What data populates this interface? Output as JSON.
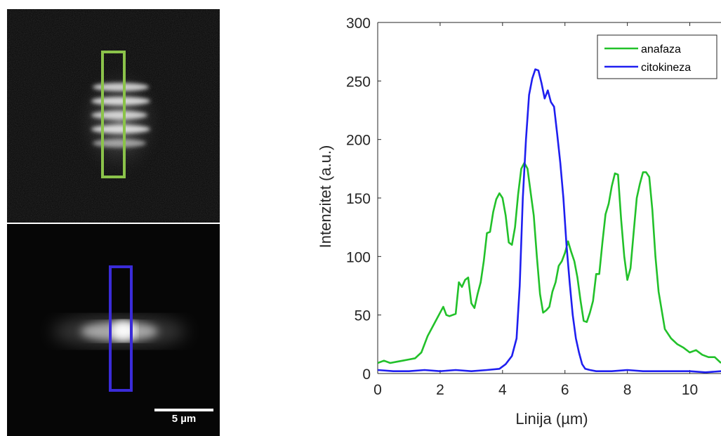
{
  "figure": {
    "scale_bar_label": "5 µm",
    "roi_top_color": "#8bc34a",
    "roi_bottom_color": "#3a2bd8"
  },
  "chart_data": {
    "type": "line",
    "xlabel": "Linija (µm)",
    "ylabel": "Intenzitet (a.u.)",
    "xlim": [
      0,
      11
    ],
    "ylim": [
      0,
      300
    ],
    "xticks": [
      0,
      2,
      4,
      6,
      8,
      10
    ],
    "yticks": [
      0,
      50,
      100,
      150,
      200,
      250,
      300
    ],
    "legend_position": "top-right",
    "series": [
      {
        "name": "anafaza",
        "color": "#22c12a",
        "x": [
          0,
          0.2,
          0.4,
          0.6,
          0.8,
          1.0,
          1.2,
          1.4,
          1.6,
          1.8,
          2.0,
          2.1,
          2.2,
          2.3,
          2.5,
          2.6,
          2.7,
          2.8,
          2.9,
          3.0,
          3.1,
          3.2,
          3.3,
          3.4,
          3.5,
          3.6,
          3.7,
          3.8,
          3.9,
          4.0,
          4.1,
          4.2,
          4.3,
          4.4,
          4.5,
          4.6,
          4.7,
          4.8,
          4.9,
          5.0,
          5.1,
          5.2,
          5.3,
          5.4,
          5.5,
          5.6,
          5.7,
          5.8,
          5.9,
          6.0,
          6.1,
          6.2,
          6.3,
          6.4,
          6.5,
          6.6,
          6.7,
          6.8,
          6.9,
          7.0,
          7.1,
          7.2,
          7.3,
          7.4,
          7.5,
          7.6,
          7.7,
          7.8,
          7.9,
          8.0,
          8.1,
          8.2,
          8.3,
          8.4,
          8.5,
          8.6,
          8.7,
          8.8,
          8.9,
          9.0,
          9.2,
          9.4,
          9.6,
          9.8,
          10.0,
          10.2,
          10.4,
          10.6,
          10.8,
          11.0
        ],
        "y": [
          9,
          11,
          9,
          10,
          11,
          12,
          13,
          18,
          32,
          42,
          52,
          57,
          50,
          49,
          51,
          78,
          74,
          80,
          82,
          60,
          56,
          68,
          78,
          96,
          120,
          121,
          138,
          149,
          154,
          150,
          135,
          112,
          110,
          125,
          153,
          175,
          180,
          175,
          155,
          135,
          100,
          68,
          52,
          54,
          57,
          70,
          78,
          92,
          96,
          103,
          113,
          104,
          96,
          82,
          62,
          45,
          44,
          52,
          62,
          85,
          85,
          112,
          136,
          145,
          160,
          171,
          170,
          132,
          100,
          80,
          90,
          120,
          150,
          162,
          172,
          172,
          168,
          140,
          100,
          70,
          38,
          30,
          25,
          22,
          18,
          20,
          16,
          14,
          14,
          9
        ]
      },
      {
        "name": "citokineza",
        "color": "#1f1ff0",
        "x": [
          0,
          0.5,
          1.0,
          1.5,
          2.0,
          2.5,
          3.0,
          3.5,
          3.9,
          4.1,
          4.3,
          4.45,
          4.55,
          4.65,
          4.75,
          4.85,
          4.95,
          5.05,
          5.15,
          5.25,
          5.35,
          5.45,
          5.55,
          5.65,
          5.75,
          5.85,
          5.95,
          6.05,
          6.15,
          6.25,
          6.35,
          6.45,
          6.55,
          6.65,
          6.8,
          7.0,
          7.5,
          8.0,
          8.5,
          9.0,
          9.5,
          10.0,
          10.5,
          11.0
        ],
        "y": [
          3,
          2,
          2,
          3,
          2,
          3,
          2,
          3,
          4,
          8,
          15,
          30,
          75,
          150,
          200,
          238,
          252,
          260,
          259,
          248,
          235,
          242,
          232,
          228,
          205,
          180,
          150,
          110,
          78,
          50,
          30,
          18,
          8,
          4,
          3,
          2,
          2,
          3,
          2,
          2,
          2,
          2,
          1,
          2
        ]
      }
    ]
  }
}
